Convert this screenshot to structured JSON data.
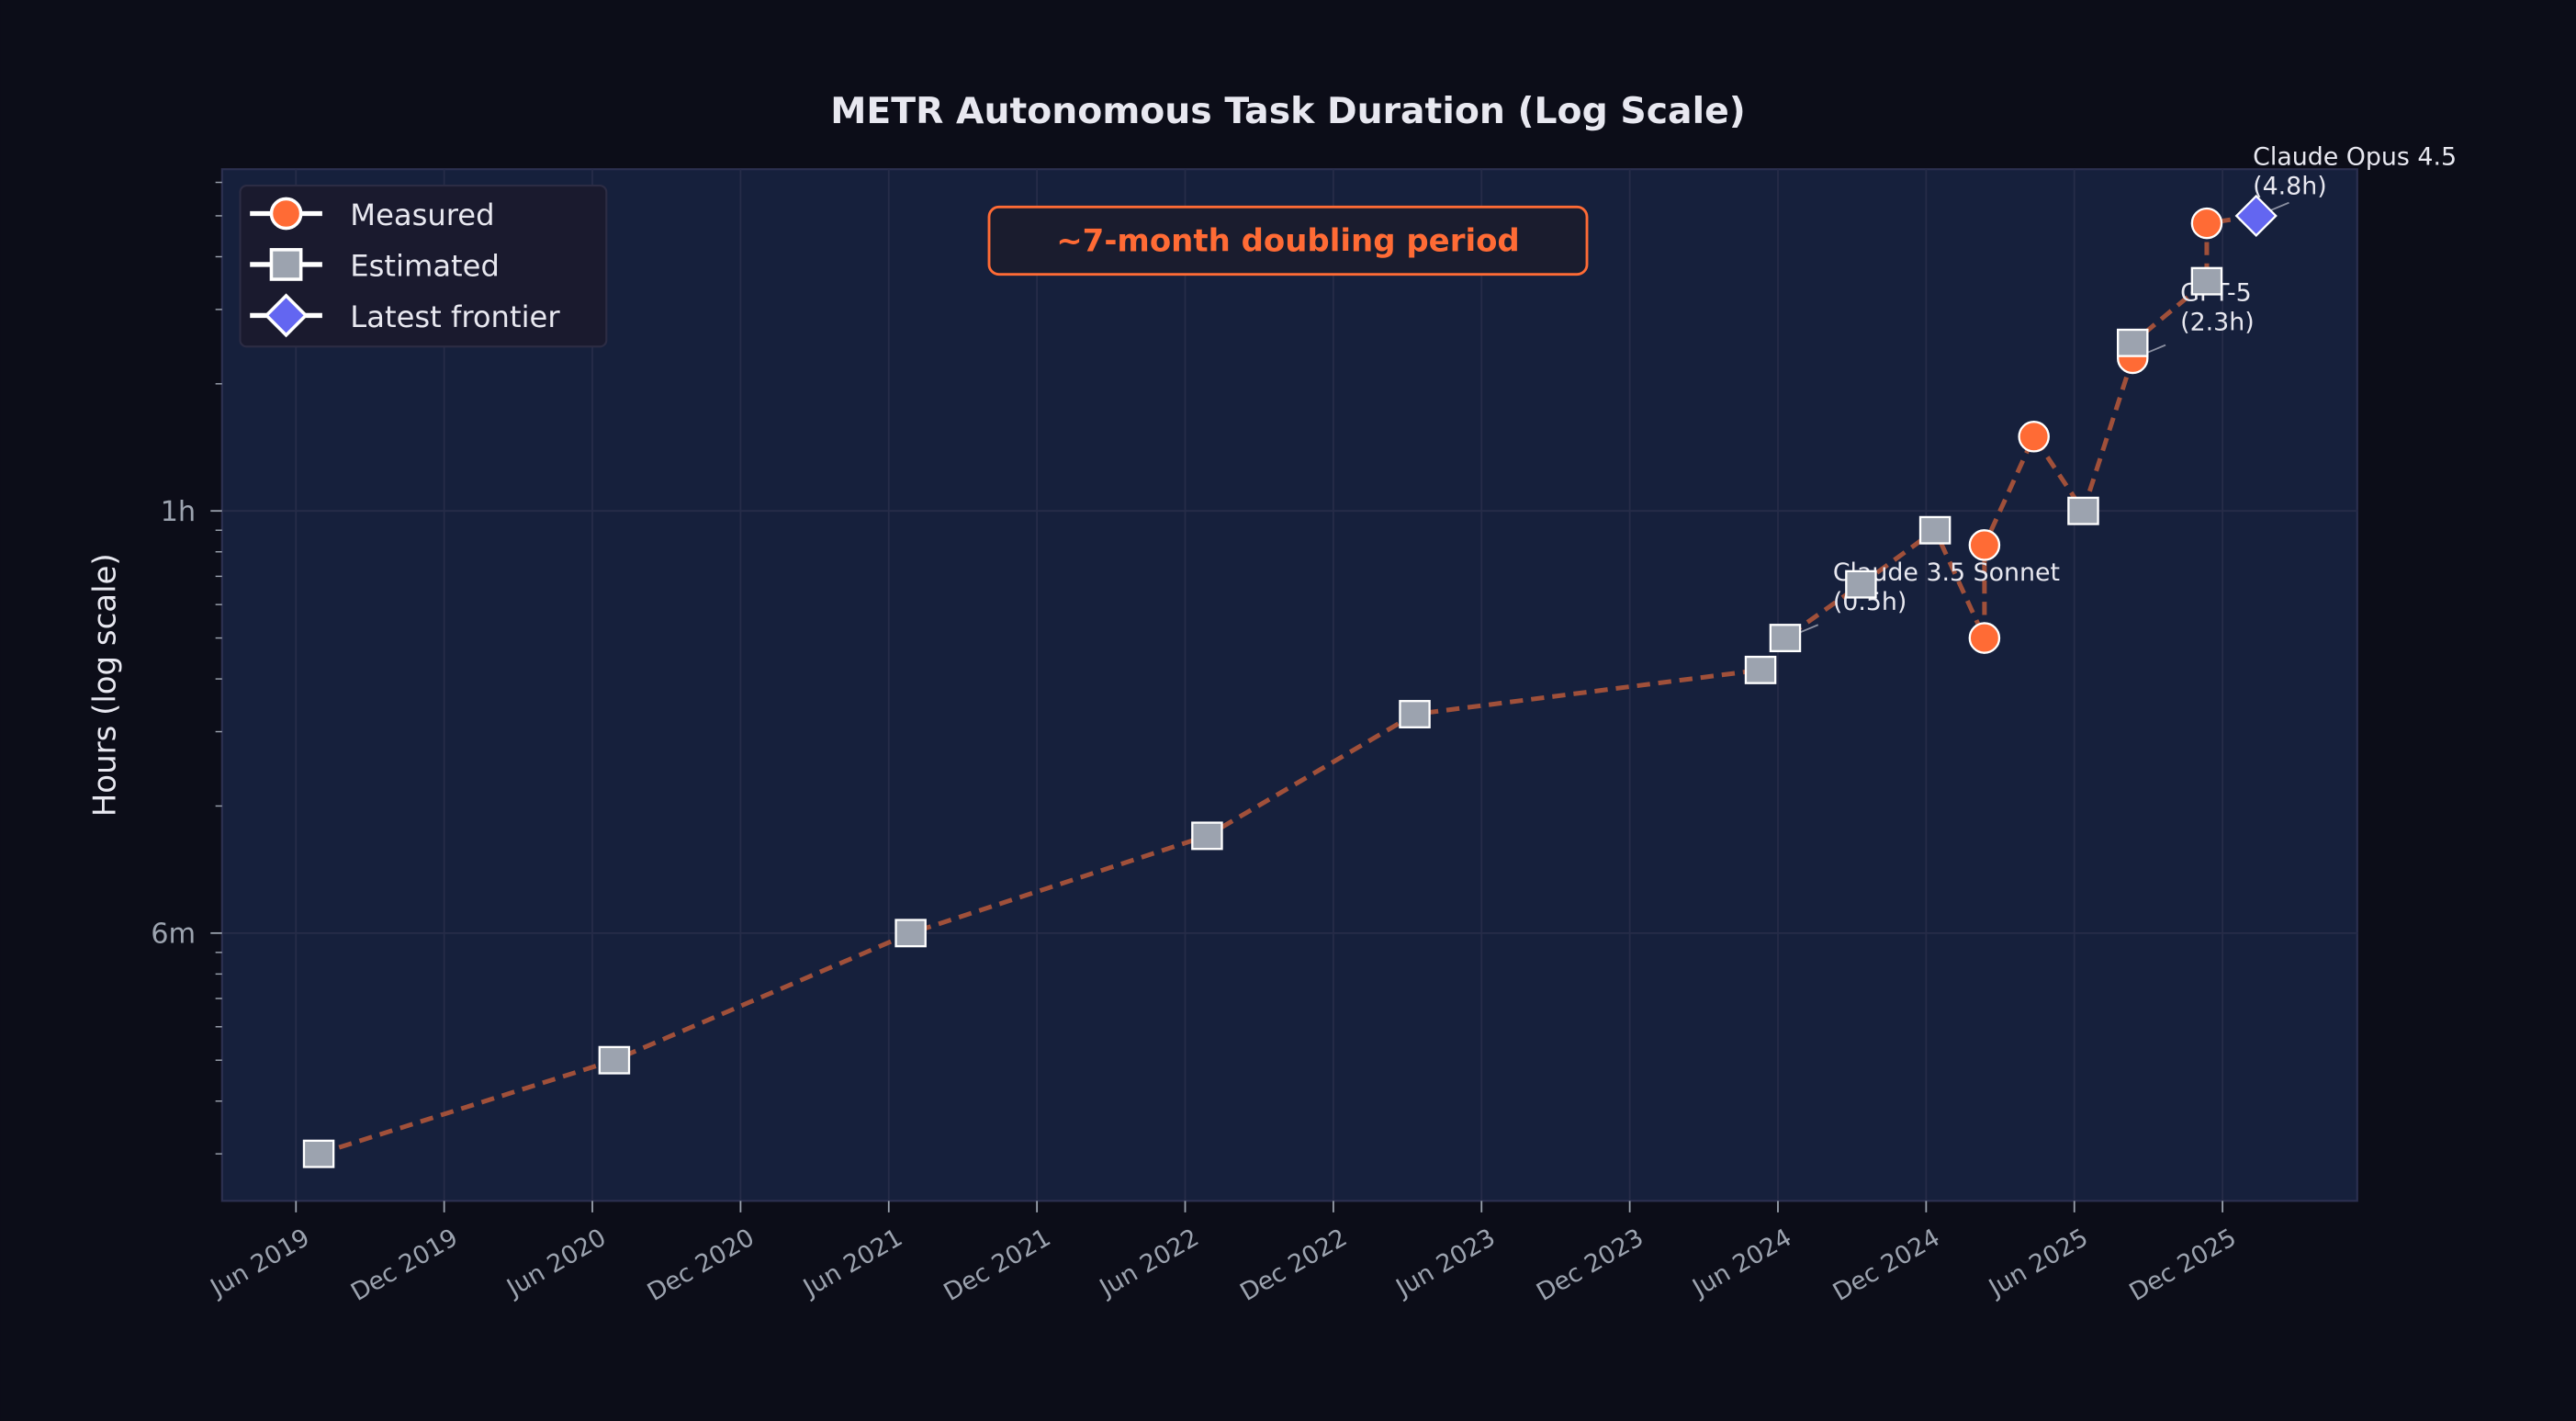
{
  "chart_data": {
    "type": "line",
    "title": "METR Autonomous Task Duration (Log Scale)",
    "xlabel": "",
    "ylabel": "Hours (log scale)",
    "y_scale": "log",
    "ylim": [
      0.023,
      6.4
    ],
    "xlim": [
      "2019-03-15",
      "2026-06-15"
    ],
    "grid": true,
    "legend_placement": "top-left",
    "y_ticks": [
      {
        "value": 0.1,
        "label": "6m"
      },
      {
        "value": 1,
        "label": "1h"
      }
    ],
    "x_ticks": [
      {
        "date": "2019-06-01",
        "label": "Jun 2019"
      },
      {
        "date": "2019-12-01",
        "label": "Dec 2019"
      },
      {
        "date": "2020-06-01",
        "label": "Jun 2020"
      },
      {
        "date": "2020-12-01",
        "label": "Dec 2020"
      },
      {
        "date": "2021-06-01",
        "label": "Jun 2021"
      },
      {
        "date": "2021-12-01",
        "label": "Dec 2021"
      },
      {
        "date": "2022-06-01",
        "label": "Jun 2022"
      },
      {
        "date": "2022-12-01",
        "label": "Dec 2022"
      },
      {
        "date": "2023-06-01",
        "label": "Jun 2023"
      },
      {
        "date": "2023-12-01",
        "label": "Dec 2023"
      },
      {
        "date": "2024-06-01",
        "label": "Jun 2024"
      },
      {
        "date": "2024-12-01",
        "label": "Dec 2024"
      },
      {
        "date": "2025-06-01",
        "label": "Jun 2025"
      },
      {
        "date": "2025-12-01",
        "label": "Dec 2025"
      }
    ],
    "legend": [
      {
        "label": "Measured",
        "marker": "circle",
        "color": "#ff6b35"
      },
      {
        "label": "Estimated",
        "marker": "square",
        "color": "#9ca3af"
      },
      {
        "label": "Latest frontier",
        "marker": "diamond",
        "color": "#6366f1"
      }
    ],
    "points": [
      {
        "date": "2019-06-29",
        "hours": 0.03,
        "kind": "estimated"
      },
      {
        "date": "2020-06-28",
        "hours": 0.05,
        "kind": "estimated"
      },
      {
        "date": "2021-06-28",
        "hours": 0.1,
        "kind": "estimated"
      },
      {
        "date": "2022-06-28",
        "hours": 0.17,
        "kind": "estimated"
      },
      {
        "date": "2023-03-10",
        "hours": 0.33,
        "kind": "estimated"
      },
      {
        "date": "2024-05-10",
        "hours": 0.42,
        "kind": "estimated"
      },
      {
        "date": "2024-06-10",
        "hours": 0.5,
        "kind": "estimated"
      },
      {
        "date": "2024-09-12",
        "hours": 0.67,
        "kind": "estimated"
      },
      {
        "date": "2024-12-12",
        "hours": 0.9,
        "kind": "estimated"
      },
      {
        "date": "2025-02-12",
        "hours": 0.5,
        "kind": "measured"
      },
      {
        "date": "2025-02-12",
        "hours": 0.83,
        "kind": "measured"
      },
      {
        "date": "2025-04-12",
        "hours": 1.5,
        "kind": "measured"
      },
      {
        "date": "2025-06-12",
        "hours": 1.0,
        "kind": "estimated"
      },
      {
        "date": "2025-08-12",
        "hours": 2.3,
        "kind": "measured"
      },
      {
        "date": "2025-08-12",
        "hours": 2.5,
        "kind": "estimated"
      },
      {
        "date": "2025-11-12",
        "hours": 3.5,
        "kind": "estimated"
      },
      {
        "date": "2025-11-12",
        "hours": 4.8,
        "kind": "measured"
      },
      {
        "date": "2026-01-12",
        "hours": 5.0,
        "kind": "frontier"
      }
    ],
    "annotations": [
      {
        "line1": "Claude 3.5 Sonnet",
        "line2": "(0.5h)",
        "date": "2024-06-10",
        "hours": 0.5
      },
      {
        "line1": "GPT-5",
        "line2": "(2.3h)",
        "date": "2025-08-12",
        "hours": 2.3
      },
      {
        "line1": "Claude Opus 4.5",
        "line2": "(4.8h)",
        "date": "2026-01-12",
        "hours": 5.0
      }
    ],
    "callout": "~7-month doubling period",
    "colors": {
      "background": "#0c0d18",
      "plot_background": "#16203c",
      "trend_line": "#a0503a",
      "accent": "#ff6b35"
    }
  }
}
